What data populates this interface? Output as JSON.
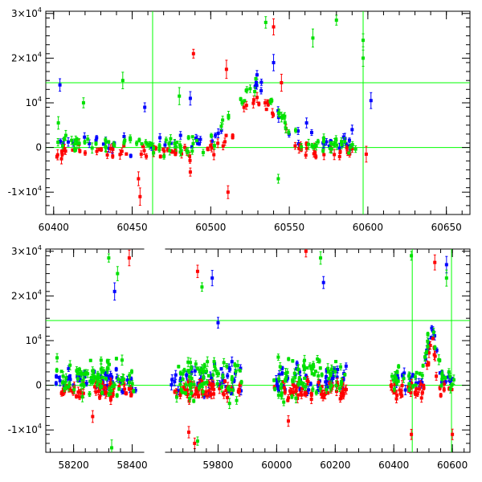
{
  "chart_data": [
    {
      "type": "scatter",
      "title": "",
      "xlabel": "",
      "ylabel": "",
      "xlim": [
        60395,
        60665
      ],
      "ylim": [
        -15000,
        30500
      ],
      "xticks": [
        {
          "value": 60400,
          "label": "60400"
        },
        {
          "value": 60450,
          "label": "60450"
        },
        {
          "value": 60500,
          "label": "60500"
        },
        {
          "value": 60550,
          "label": "60550"
        },
        {
          "value": 60600,
          "label": "60600"
        },
        {
          "value": 60650,
          "label": "60650"
        }
      ],
      "yticks": [
        {
          "value": -10000,
          "base": "-1×10",
          "exp": "4"
        },
        {
          "value": 0,
          "base": "0",
          "exp": ""
        },
        {
          "value": 10000,
          "base": "10",
          "exp": "4"
        },
        {
          "value": 20000,
          "base": "2×10",
          "exp": "4"
        },
        {
          "value": 30000,
          "base": "3×10",
          "exp": "4"
        }
      ],
      "hlines": [
        0,
        14500
      ],
      "vlines": [
        60463,
        60597
      ],
      "line_color": "#00ff00",
      "series": [
        {
          "color": "#0000ff",
          "segments": [
            {
              "x0": 60400,
              "x1": 60600,
              "base": 800,
              "noise": 2000,
              "count": 60,
              "peak_x": 60528,
              "peak_y": 13500,
              "peak_w": 13
            }
          ],
          "outliers": [
            [
              60404,
              14000
            ],
            [
              60458,
              9000
            ],
            [
              60540,
              19000
            ],
            [
              60561,
              5500
            ],
            [
              60590,
              4000
            ],
            [
              60602,
              10500
            ],
            [
              60487,
              11000
            ]
          ]
        },
        {
          "color": "#ff0000",
          "segments": [
            {
              "x0": 60400,
              "x1": 60600,
              "base": -1000,
              "noise": 1700,
              "count": 90,
              "peak_x": 60530,
              "peak_y": 11500,
              "peak_w": 11
            }
          ],
          "outliers": [
            [
              60455,
              -11000
            ],
            [
              60511,
              -10000
            ],
            [
              60540,
              27000
            ],
            [
              60489,
              21000
            ],
            [
              60510,
              17500
            ],
            [
              60487,
              -5500
            ],
            [
              60545,
              14500
            ],
            [
              60454,
              -7000
            ],
            [
              60599,
              -1500
            ]
          ]
        },
        {
          "color": "#00e000",
          "segments": [
            {
              "x0": 60400,
              "x1": 60600,
              "base": 700,
              "noise": 2000,
              "count": 110,
              "peak_x": 60529,
              "peak_y": 12500,
              "peak_w": 13
            }
          ],
          "outliers": [
            [
              60535,
              28000
            ],
            [
              60580,
              28500
            ],
            [
              60597,
              24000
            ],
            [
              60565,
              24500
            ],
            [
              60597,
              20000
            ],
            [
              60543,
              -7000
            ],
            [
              60419,
              10000
            ],
            [
              60444,
              15000
            ],
            [
              60403,
              5500
            ],
            [
              60480,
              11500
            ]
          ]
        }
      ]
    },
    {
      "type": "scatter",
      "title": "",
      "xlabel": "",
      "ylabel": "",
      "xlim": [
        58105,
        60660
      ],
      "xscale": "broken",
      "axis_break": [
        58430,
        59630
      ],
      "ylim": [
        -15000,
        30500
      ],
      "xticks": [
        {
          "value": 58200,
          "label": "58200"
        },
        {
          "value": 58400,
          "label": "58400"
        },
        {
          "value": 59800,
          "label": "59800"
        },
        {
          "value": 60000,
          "label": "60000"
        },
        {
          "value": 60200,
          "label": "60200"
        },
        {
          "value": 60400,
          "label": "60400"
        },
        {
          "value": 60600,
          "label": "60600"
        }
      ],
      "yticks": [
        {
          "value": -10000,
          "base": "-1×10",
          "exp": "4"
        },
        {
          "value": 0,
          "base": "0",
          "exp": ""
        },
        {
          "value": 10000,
          "base": "10",
          "exp": "4"
        },
        {
          "value": 20000,
          "base": "2×10",
          "exp": "4"
        },
        {
          "value": 30000,
          "base": "3×10",
          "exp": "4"
        }
      ],
      "hlines": [
        0,
        14500
      ],
      "vlines": [
        60463,
        60597
      ],
      "line_color": "#00ff00",
      "series": [
        {
          "color": "#0000ff",
          "segments": [
            {
              "x0": 58140,
              "x1": 58420,
              "base": 1200,
              "noise": 3000,
              "count": 45
            },
            {
              "x0": 59640,
              "x1": 59880,
              "base": 1500,
              "noise": 3500,
              "count": 45
            },
            {
              "x0": 59990,
              "x1": 60240,
              "base": 1500,
              "noise": 3500,
              "count": 50
            },
            {
              "x0": 60390,
              "x1": 60605,
              "base": 1000,
              "noise": 2500,
              "count": 35,
              "peak_x": 60530,
              "peak_y": 12000,
              "peak_w": 15
            }
          ],
          "outliers": [
            [
              58340,
              21000
            ],
            [
              59780,
              24000
            ],
            [
              60160,
              23000
            ],
            [
              60580,
              27000
            ],
            [
              59800,
              14000
            ]
          ]
        },
        {
          "color": "#ff0000",
          "segments": [
            {
              "x0": 58140,
              "x1": 58420,
              "base": -1000,
              "noise": 2000,
              "count": 55
            },
            {
              "x0": 59640,
              "x1": 59880,
              "base": -1000,
              "noise": 2200,
              "count": 55
            },
            {
              "x0": 59990,
              "x1": 60240,
              "base": -1200,
              "noise": 2200,
              "count": 60
            },
            {
              "x0": 60390,
              "x1": 60605,
              "base": -1000,
              "noise": 2000,
              "count": 45,
              "peak_x": 60530,
              "peak_y": 11000,
              "peak_w": 12
            }
          ],
          "outliers": [
            [
              58390,
              28500
            ],
            [
              59720,
              -13000
            ],
            [
              60100,
              30000
            ],
            [
              60460,
              -11000
            ],
            [
              60540,
              27500
            ],
            [
              59700,
              -10500
            ],
            [
              60040,
              -8000
            ],
            [
              58265,
              -7000
            ],
            [
              60600,
              -11000
            ],
            [
              59730,
              25500
            ]
          ]
        },
        {
          "color": "#00e000",
          "segments": [
            {
              "x0": 58140,
              "x1": 58420,
              "base": 1500,
              "noise": 4500,
              "count": 75
            },
            {
              "x0": 59640,
              "x1": 59880,
              "base": 1800,
              "noise": 4500,
              "count": 70
            },
            {
              "x0": 59990,
              "x1": 60240,
              "base": 1800,
              "noise": 4500,
              "count": 75
            },
            {
              "x0": 60390,
              "x1": 60605,
              "base": 1200,
              "noise": 2500,
              "count": 45,
              "peak_x": 60528,
              "peak_y": 13000,
              "peak_w": 15
            }
          ],
          "outliers": [
            [
              58320,
              28500
            ],
            [
              59745,
              22000
            ],
            [
              60150,
              28500
            ],
            [
              58350,
              25000
            ],
            [
              60460,
              29000
            ],
            [
              58330,
              -14000
            ],
            [
              59730,
              -12500
            ],
            [
              60580,
              24000
            ]
          ]
        }
      ]
    }
  ]
}
